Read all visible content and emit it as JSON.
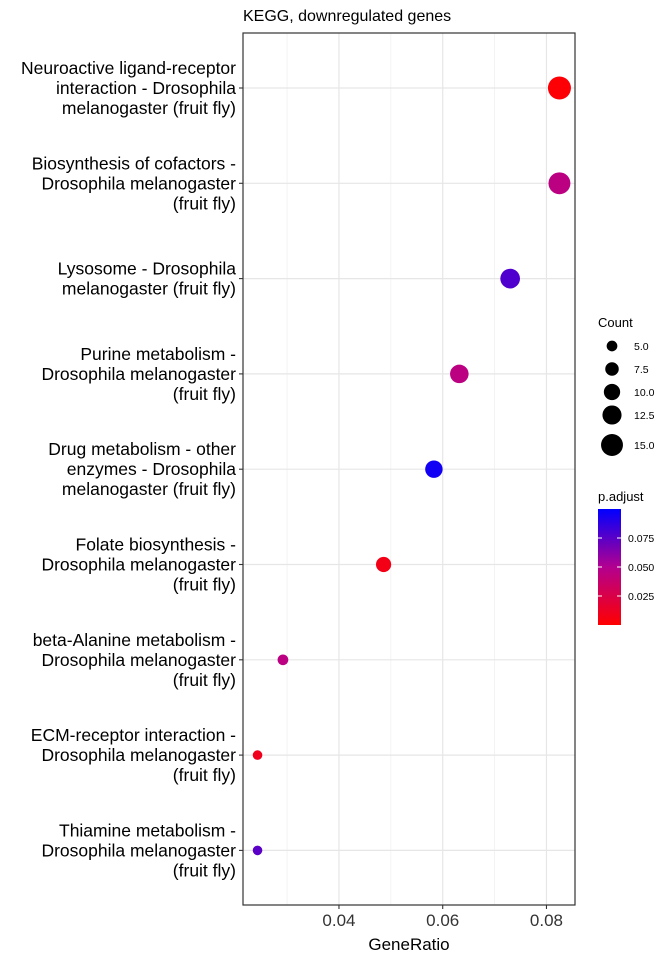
{
  "chart_data": {
    "type": "scatter",
    "title": "KEGG, downregulated genes",
    "xlabel": "GeneRatio",
    "ylabel": "",
    "xlim": [
      0.0215,
      0.0855
    ],
    "xticks": [
      0.04,
      0.06,
      0.08
    ],
    "xtick_labels": [
      "0.04",
      "0.06",
      "0.08"
    ],
    "grid": true,
    "legend_placement": "right",
    "categories": [
      "Neuroactive ligand-receptor interaction - Drosophila melanogaster (fruit fly)",
      "Biosynthesis of cofactors - Drosophila melanogaster (fruit fly)",
      "Lysosome - Drosophila melanogaster (fruit fly)",
      "Purine metabolism - Drosophila melanogaster (fruit fly)",
      "Drug metabolism - other enzymes - Drosophila melanogaster (fruit fly)",
      "Folate biosynthesis - Drosophila melanogaster (fruit fly)",
      "beta-Alanine metabolism - Drosophila melanogaster (fruit fly)",
      "ECM-receptor interaction - Drosophila melanogaster (fruit fly)",
      "Thiamine metabolism - Drosophila melanogaster (fruit fly)"
    ],
    "category_label_lines": [
      [
        "Neuroactive ligand-receptor",
        "interaction - Drosophila",
        "melanogaster (fruit fly)"
      ],
      [
        "Biosynthesis of cofactors -",
        "Drosophila melanogaster",
        "(fruit fly)"
      ],
      [
        "Lysosome - Drosophila",
        "melanogaster (fruit fly)"
      ],
      [
        "Purine metabolism -",
        "Drosophila melanogaster",
        "(fruit fly)"
      ],
      [
        "Drug metabolism - other",
        "enzymes - Drosophila",
        "melanogaster (fruit fly)"
      ],
      [
        "Folate biosynthesis -",
        "Drosophila melanogaster",
        "(fruit fly)"
      ],
      [
        "beta-Alanine metabolism -",
        "Drosophila melanogaster",
        "(fruit fly)"
      ],
      [
        "ECM-receptor interaction -",
        "Drosophila melanogaster",
        "(fruit fly)"
      ],
      [
        "Thiamine metabolism -",
        "Drosophila melanogaster",
        "(fruit fly)"
      ]
    ],
    "points": [
      {
        "gene_ratio": 0.0825,
        "count": 16,
        "p_adjust": 0.002
      },
      {
        "gene_ratio": 0.0825,
        "count": 15,
        "p_adjust": 0.045
      },
      {
        "gene_ratio": 0.073,
        "count": 13,
        "p_adjust": 0.078
      },
      {
        "gene_ratio": 0.0632,
        "count": 12,
        "p_adjust": 0.045
      },
      {
        "gene_ratio": 0.0583,
        "count": 11,
        "p_adjust": 0.095
      },
      {
        "gene_ratio": 0.0486,
        "count": 9,
        "p_adjust": 0.008
      },
      {
        "gene_ratio": 0.0292,
        "count": 5,
        "p_adjust": 0.045
      },
      {
        "gene_ratio": 0.0243,
        "count": 4,
        "p_adjust": 0.01
      },
      {
        "gene_ratio": 0.0243,
        "count": 4,
        "p_adjust": 0.075
      }
    ],
    "size_legend": {
      "title": "Count",
      "values": [
        5,
        7.5,
        10,
        12.5,
        15
      ],
      "labels": [
        "5.0",
        "7.5",
        "10.0",
        "12.5",
        "15.0"
      ]
    },
    "color_legend": {
      "title": "p.adjust",
      "range": [
        0.0,
        0.1
      ],
      "ticks": [
        0.025,
        0.05,
        0.075
      ],
      "labels": [
        "0.025",
        "0.050",
        "0.075"
      ],
      "low_color": "#ff0000",
      "high_color": "#0000ff"
    }
  }
}
